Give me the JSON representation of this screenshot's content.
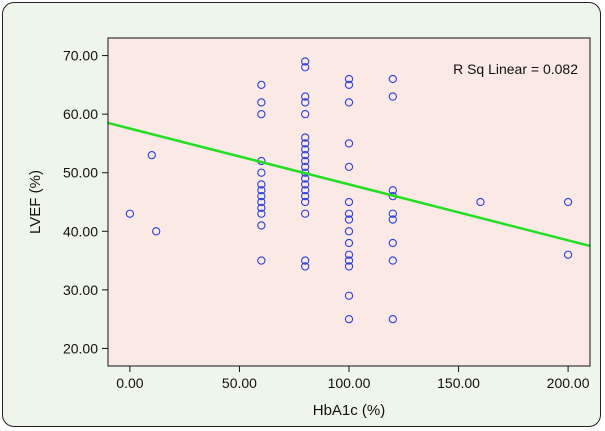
{
  "chart_data": {
    "type": "scatter",
    "xlabel": "HbA1c (%)",
    "ylabel": "LVEF (%)",
    "xlim": [
      -10,
      210
    ],
    "ylim": [
      17,
      73
    ],
    "xticks": [
      0,
      50,
      100,
      150,
      200
    ],
    "xtick_labels": [
      "0.00",
      "50.00",
      "100.00",
      "150.00",
      "200.00"
    ],
    "yticks": [
      20,
      30,
      40,
      50,
      60,
      70
    ],
    "ytick_labels": [
      "20.00",
      "30.00",
      "40.00",
      "50.00",
      "60.00",
      "70.00"
    ],
    "annotation": "R Sq Linear = 0.082",
    "fit_line": {
      "x": [
        -10,
        210
      ],
      "y": [
        58.5,
        37.5
      ]
    },
    "points": [
      [
        0,
        43
      ],
      [
        10,
        53
      ],
      [
        12,
        40
      ],
      [
        60,
        65
      ],
      [
        60,
        62
      ],
      [
        60,
        60
      ],
      [
        60,
        52
      ],
      [
        60,
        50
      ],
      [
        60,
        48
      ],
      [
        60,
        47
      ],
      [
        60,
        46
      ],
      [
        60,
        45
      ],
      [
        60,
        44
      ],
      [
        60,
        43
      ],
      [
        60,
        41
      ],
      [
        60,
        35
      ],
      [
        80,
        69
      ],
      [
        80,
        68
      ],
      [
        80,
        63
      ],
      [
        80,
        62
      ],
      [
        80,
        60
      ],
      [
        80,
        56
      ],
      [
        80,
        55
      ],
      [
        80,
        54
      ],
      [
        80,
        53
      ],
      [
        80,
        52
      ],
      [
        80,
        51
      ],
      [
        80,
        50
      ],
      [
        80,
        49
      ],
      [
        80,
        48
      ],
      [
        80,
        47
      ],
      [
        80,
        46
      ],
      [
        80,
        45
      ],
      [
        80,
        43
      ],
      [
        80,
        35
      ],
      [
        80,
        34
      ],
      [
        100,
        66
      ],
      [
        100,
        65
      ],
      [
        100,
        62
      ],
      [
        100,
        55
      ],
      [
        100,
        51
      ],
      [
        100,
        45
      ],
      [
        100,
        43
      ],
      [
        100,
        42
      ],
      [
        100,
        40
      ],
      [
        100,
        38
      ],
      [
        100,
        36
      ],
      [
        100,
        35
      ],
      [
        100,
        34
      ],
      [
        100,
        29
      ],
      [
        100,
        25
      ],
      [
        120,
        66
      ],
      [
        120,
        63
      ],
      [
        120,
        47
      ],
      [
        120,
        46
      ],
      [
        120,
        43
      ],
      [
        120,
        42
      ],
      [
        120,
        38
      ],
      [
        120,
        35
      ],
      [
        120,
        25
      ],
      [
        160,
        45
      ],
      [
        200,
        45
      ],
      [
        200,
        36
      ]
    ],
    "colors": {
      "plot_bg": "#fbe9e6",
      "frame_bg": "#eef5ea",
      "point": "#2a3fd6",
      "fit": "#22dd22"
    }
  }
}
